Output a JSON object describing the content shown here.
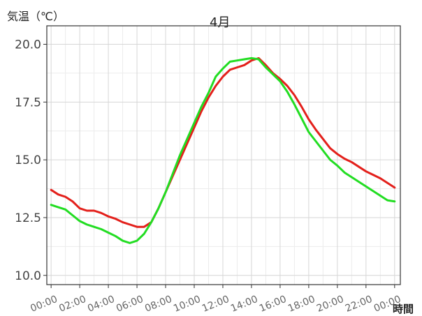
{
  "chart_data": {
    "type": "line",
    "title": "4月",
    "ylabel": "気温（℃）",
    "xlabel": "時間",
    "ylim": [
      9.6,
      20.8
    ],
    "xlim": [
      -0.3,
      24.4
    ],
    "grid": true,
    "legend": "none",
    "x_ticks": [
      0,
      2,
      4,
      6,
      8,
      10,
      12,
      14,
      16,
      18,
      20,
      22,
      24
    ],
    "x_tick_labels": [
      "00:00",
      "02:00",
      "04:00",
      "06:00",
      "08:00",
      "10:00",
      "12:00",
      "14:00",
      "16:00",
      "18:00",
      "20:00",
      "22:00",
      "00:00"
    ],
    "y_ticks": [
      10.0,
      12.5,
      15.0,
      17.5,
      20.0
    ],
    "y_tick_labels": [
      "10.0",
      "12.5",
      "15.0",
      "17.5",
      "20.0"
    ],
    "series": [
      {
        "color": "#e3201b",
        "x": [
          0,
          0.5,
          1,
          1.5,
          2,
          2.5,
          3,
          3.5,
          4,
          4.5,
          5,
          5.5,
          6,
          6.5,
          7,
          7.5,
          8,
          8.5,
          9,
          9.5,
          10,
          10.5,
          11,
          11.5,
          12,
          12.5,
          13,
          13.5,
          14,
          14.5,
          15,
          15.5,
          16,
          16.5,
          17,
          17.5,
          18,
          18.5,
          19,
          19.5,
          20,
          20.5,
          21,
          21.5,
          22,
          22.5,
          23,
          23.5,
          24
        ],
        "values": [
          13.7,
          13.5,
          13.4,
          13.2,
          12.9,
          12.8,
          12.8,
          12.7,
          12.55,
          12.45,
          12.3,
          12.2,
          12.1,
          12.1,
          12.3,
          12.9,
          13.6,
          14.3,
          15.0,
          15.7,
          16.4,
          17.1,
          17.7,
          18.2,
          18.6,
          18.9,
          19.0,
          19.1,
          19.3,
          19.4,
          19.1,
          18.75,
          18.5,
          18.2,
          17.8,
          17.3,
          16.75,
          16.3,
          15.9,
          15.5,
          15.25,
          15.05,
          14.9,
          14.7,
          14.5,
          14.35,
          14.2,
          14.0,
          13.8
        ]
      },
      {
        "color": "#22dd22",
        "x": [
          0,
          0.5,
          1,
          1.5,
          2,
          2.5,
          3,
          3.5,
          4,
          4.5,
          5,
          5.5,
          6,
          6.5,
          7,
          7.5,
          8,
          8.5,
          9,
          9.5,
          10,
          10.5,
          11,
          11.5,
          12,
          12.5,
          13,
          13.5,
          14,
          14.5,
          15,
          15.5,
          16,
          16.5,
          17,
          17.5,
          18,
          18.5,
          19,
          19.5,
          20,
          20.5,
          21,
          21.5,
          22,
          22.5,
          23,
          23.5,
          24
        ],
        "values": [
          13.05,
          12.95,
          12.85,
          12.6,
          12.35,
          12.2,
          12.1,
          12.0,
          11.85,
          11.7,
          11.5,
          11.4,
          11.5,
          11.8,
          12.3,
          12.9,
          13.6,
          14.4,
          15.2,
          15.9,
          16.6,
          17.3,
          17.9,
          18.6,
          18.95,
          19.25,
          19.3,
          19.35,
          19.4,
          19.35,
          19.0,
          18.7,
          18.4,
          17.95,
          17.4,
          16.8,
          16.2,
          15.8,
          15.4,
          15.0,
          14.75,
          14.45,
          14.25,
          14.05,
          13.85,
          13.65,
          13.45,
          13.25,
          13.2
        ]
      }
    ]
  }
}
